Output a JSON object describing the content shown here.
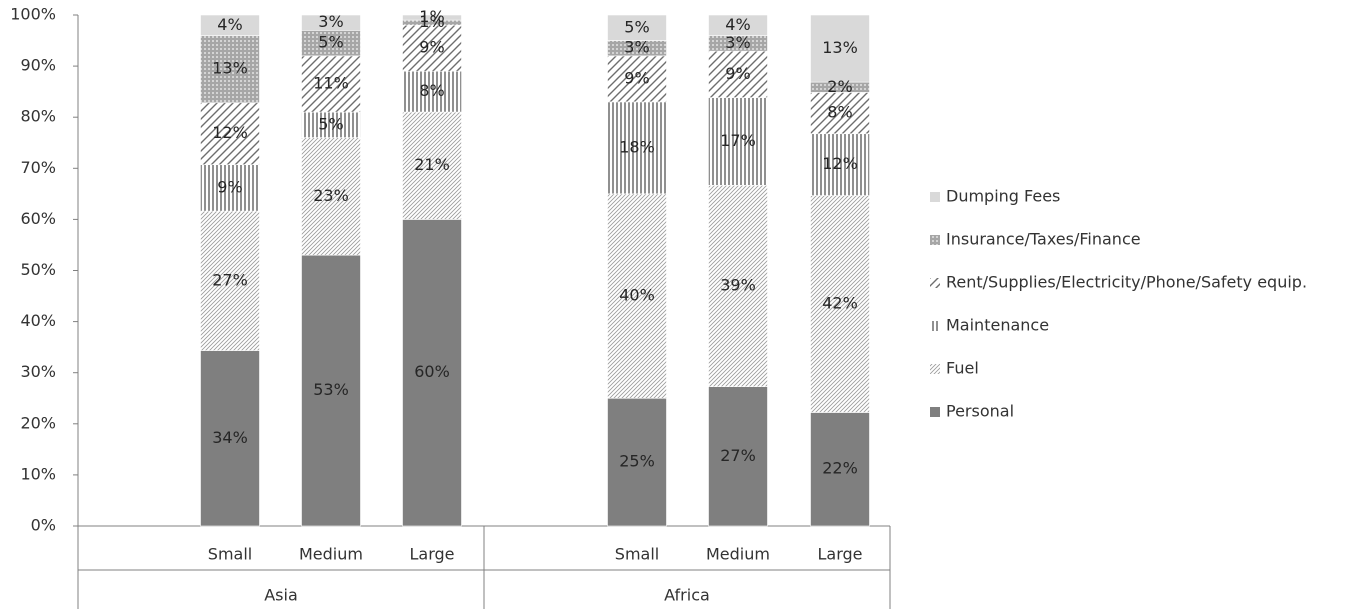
{
  "chart_data": {
    "type": "bar",
    "stacked": true,
    "percent_stacked": true,
    "groups": [
      {
        "name": "Asia",
        "categories": [
          "Small",
          "Medium",
          "Large"
        ]
      },
      {
        "name": "Africa",
        "categories": [
          "Small",
          "Medium",
          "Large"
        ]
      }
    ],
    "ylim": [
      0,
      100
    ],
    "yticks": [
      "0%",
      "10%",
      "20%",
      "30%",
      "40%",
      "50%",
      "60%",
      "70%",
      "80%",
      "90%",
      "100%"
    ],
    "grid": false,
    "legend_position": "right",
    "series": [
      {
        "name": "Personal",
        "color": "#7f7f7f",
        "pattern": "solid",
        "values": [
          34,
          53,
          60,
          25,
          27,
          22
        ],
        "value_labels": [
          "34%",
          "53%",
          "60%",
          "25%",
          "27%",
          "22%"
        ]
      },
      {
        "name": "Fuel",
        "color": "#ffffff",
        "pattern": "light-diagonal",
        "values": [
          27,
          23,
          21,
          40,
          39,
          42
        ],
        "value_labels": [
          "27%",
          "23%",
          "21%",
          "40%",
          "39%",
          "42%"
        ]
      },
      {
        "name": "Maintenance",
        "color": "#ffffff",
        "pattern": "vertical-lines",
        "values": [
          9,
          5,
          8,
          18,
          17,
          12
        ],
        "value_labels": [
          "9%",
          "5%",
          "8%",
          "18%",
          "17%",
          "12%"
        ]
      },
      {
        "name": "Rent/Supplies/Electricity/Phone/Safety equip.",
        "color": "#ffffff",
        "pattern": "wide-diagonal",
        "values": [
          12,
          11,
          9,
          9,
          9,
          8
        ],
        "value_labels": [
          "12%",
          "11%",
          "9%",
          "9%",
          "9%",
          "8%"
        ]
      },
      {
        "name": "Insurance/Taxes/Finance",
        "color": "#a6a6a6",
        "pattern": "dotted-grid",
        "values": [
          13,
          5,
          1,
          3,
          3,
          2
        ],
        "value_labels": [
          "13%",
          "5%",
          "1%",
          "3%",
          "3%",
          "2%"
        ]
      },
      {
        "name": "Dumping Fees",
        "color": "#d9d9d9",
        "pattern": "solid",
        "values": [
          4,
          3,
          1,
          5,
          4,
          13
        ],
        "value_labels": [
          "4%",
          "3%",
          "1%",
          "5%",
          "4%",
          "13%"
        ]
      }
    ]
  }
}
